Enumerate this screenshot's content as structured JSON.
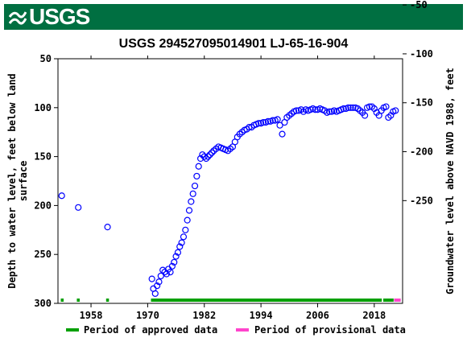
{
  "banner": {
    "logo_text": "USGS",
    "color": "#006f41"
  },
  "chart_data": {
    "type": "scatter",
    "title": "USGS 294527095014901 LJ-65-16-904",
    "ylabel_left": [
      "Depth to water level, feet below land",
      "surface"
    ],
    "ylabel_right": "Groundwater level above NAVD 1988, feet",
    "x_ticks": [
      "1958",
      "1970",
      "1982",
      "1994",
      "2006",
      "2018"
    ],
    "x_tick_values": [
      1958,
      1970,
      1982,
      1994,
      2006,
      2018
    ],
    "xlim": [
      1951,
      2024
    ],
    "y_left_ticks": [
      "50",
      "100",
      "150",
      "200",
      "250",
      "300"
    ],
    "y_left_values": [
      50,
      100,
      150,
      200,
      250,
      300
    ],
    "ylim_left": [
      50,
      300
    ],
    "y_right_ticks": [
      "-50",
      "-100",
      "-150",
      "-200",
      "-250"
    ],
    "y_right_values": [
      -50,
      -100,
      -150,
      -200,
      -250
    ],
    "right_offset": -55,
    "marker_color": "#0000ff",
    "series": [
      {
        "name": "Depth to water level",
        "x": [
          1951.8,
          1955.3,
          1961.5,
          1970.9,
          1971.2,
          1971.6,
          1972.0,
          1972.4,
          1972.8,
          1973.2,
          1973.6,
          1974.0,
          1974.4,
          1974.8,
          1975.2,
          1975.6,
          1976.0,
          1976.4,
          1976.8,
          1977.2,
          1977.6,
          1978.0,
          1978.4,
          1978.8,
          1979.2,
          1979.6,
          1980.0,
          1980.4,
          1980.8,
          1981.2,
          1981.6,
          1982.0,
          1982.4,
          1982.8,
          1983.2,
          1983.6,
          1984.0,
          1984.5,
          1985.0,
          1985.5,
          1986.0,
          1986.5,
          1987.0,
          1987.5,
          1988.0,
          1988.5,
          1989.0,
          1989.5,
          1990.0,
          1990.5,
          1991.0,
          1991.5,
          1992.0,
          1992.5,
          1993.0,
          1993.5,
          1994.0,
          1994.5,
          1995.0,
          1995.5,
          1996.0,
          1996.5,
          1997.0,
          1997.5,
          1998.0,
          1998.5,
          1999.0,
          1999.5,
          2000.0,
          2000.5,
          2001.0,
          2001.5,
          2002.0,
          2002.5,
          2003.0,
          2003.5,
          2004.0,
          2004.5,
          2005.0,
          2005.5,
          2006.0,
          2006.5,
          2007.0,
          2007.5,
          2008.0,
          2008.5,
          2009.0,
          2009.5,
          2010.0,
          2010.5,
          2011.0,
          2011.5,
          2012.0,
          2012.5,
          2013.0,
          2013.5,
          2014.0,
          2014.5,
          2015.0,
          2015.5,
          2016.0,
          2016.5,
          2017.0,
          2017.5,
          2018.0,
          2018.5,
          2019.0,
          2019.5,
          2020.0,
          2020.5,
          2021.0,
          2021.5,
          2022.0,
          2022.5
        ],
        "y": [
          190,
          202,
          222,
          275,
          285,
          290,
          282,
          278,
          272,
          266,
          268,
          270,
          265,
          268,
          262,
          258,
          252,
          248,
          242,
          238,
          232,
          225,
          215,
          205,
          196,
          188,
          180,
          170,
          160,
          152,
          148,
          150,
          152,
          150,
          148,
          146,
          144,
          142,
          140,
          141,
          142,
          143,
          144,
          142,
          140,
          135,
          130,
          127,
          125,
          123,
          122,
          120,
          120,
          118,
          117,
          116,
          116,
          115,
          115,
          114,
          114,
          113,
          113,
          112,
          118,
          127,
          115,
          110,
          108,
          106,
          104,
          103,
          103,
          102,
          104,
          102,
          103,
          102,
          101,
          102,
          102,
          101,
          102,
          103,
          105,
          104,
          104,
          103,
          104,
          103,
          102,
          101,
          101,
          100,
          100,
          100,
          100,
          101,
          103,
          105,
          108,
          100,
          99,
          99,
          101,
          105,
          108,
          103,
          100,
          99,
          110,
          108,
          104,
          103
        ]
      }
    ],
    "approved_periods": [
      [
        1951.6,
        1952.2
      ],
      [
        1955.0,
        1955.6
      ],
      [
        1961.2,
        1961.8
      ],
      [
        1970.7,
        2019.6
      ],
      [
        2019.9,
        2022.1
      ]
    ],
    "provisional_periods": [
      [
        2022.2,
        2023.6
      ]
    ],
    "approved_color": "#00a000",
    "provisional_color": "#ff44cc",
    "legend": {
      "approved_label": "Period of approved data",
      "provisional_label": "Period of provisional data",
      "position": "bottom"
    }
  }
}
